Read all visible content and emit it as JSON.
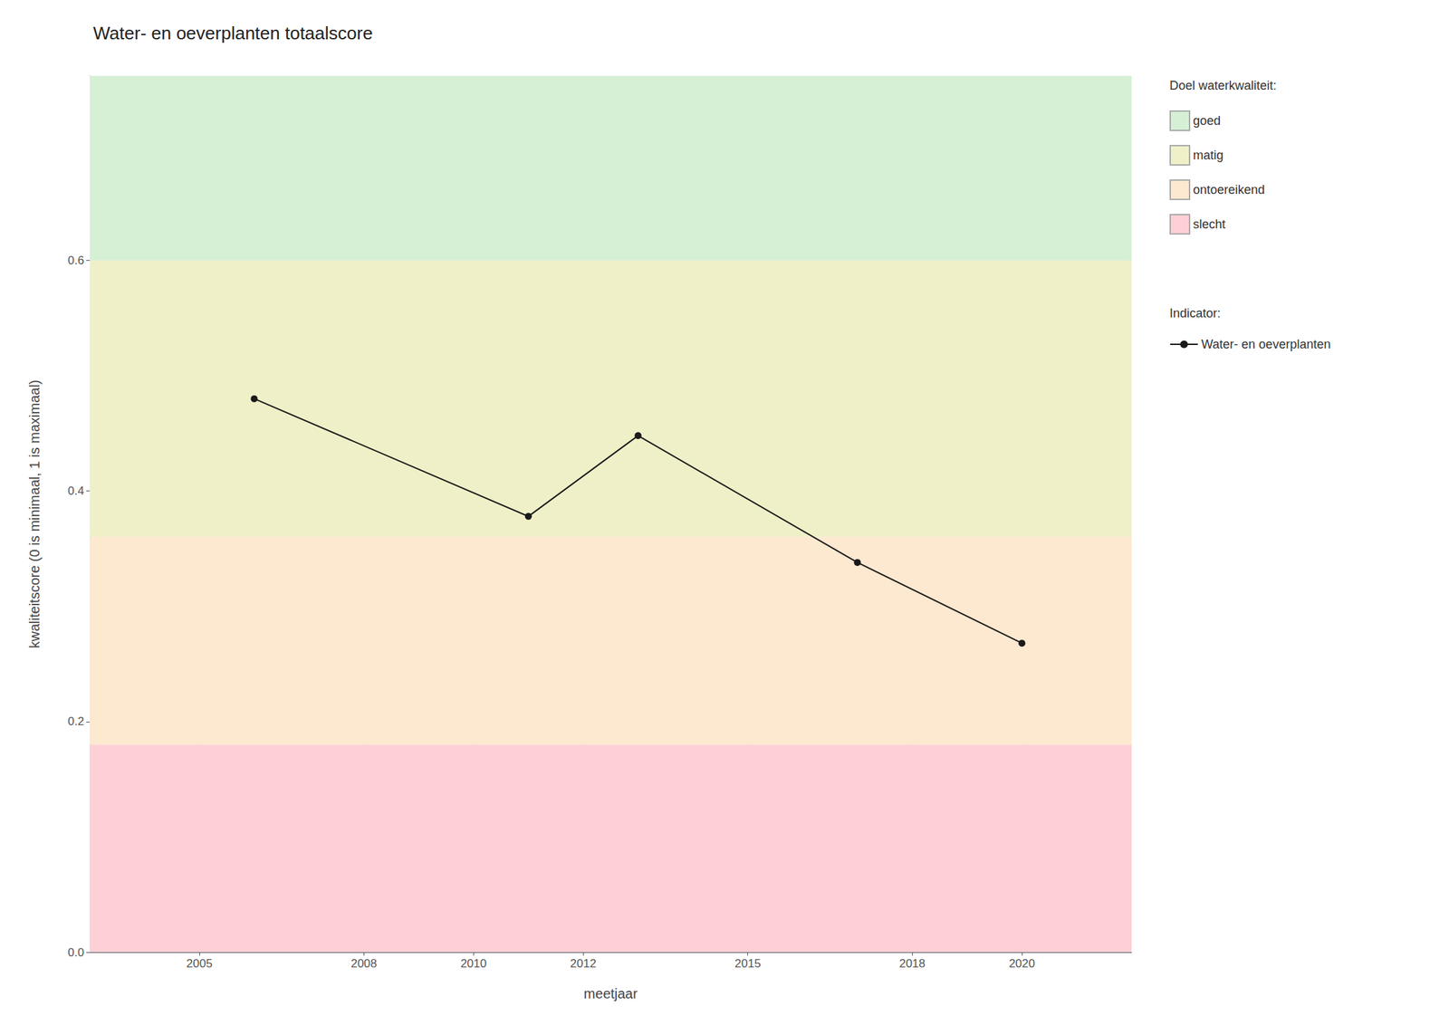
{
  "chart_data": {
    "type": "line",
    "title": "Water- en oeverplanten totaalscore",
    "xlabel": "meetjaar",
    "ylabel": "kwaliteitscore (0 is minimaal, 1 is maximaal)",
    "x": [
      2006,
      2011,
      2013,
      2017,
      2020
    ],
    "series": [
      {
        "name": "Water- en oeverplanten",
        "color": "#1a1a1a",
        "marker": "circle",
        "values": [
          0.48,
          0.378,
          0.448,
          0.338,
          0.268
        ]
      }
    ],
    "bands": [
      {
        "name": "goed",
        "ymin": 0.6,
        "ymax": 0.76,
        "color": "#d6f0d6"
      },
      {
        "name": "matig",
        "ymin": 0.36,
        "ymax": 0.6,
        "color": "#f0f0c8"
      },
      {
        "name": "ontoereikend",
        "ymin": 0.18,
        "ymax": 0.36,
        "color": "#fde8d0"
      },
      {
        "name": "slecht",
        "ymin": 0.0,
        "ymax": 0.18,
        "color": "#fdd0d5"
      }
    ],
    "legend_title_bands": "Doel waterkwaliteit:",
    "legend_title_series": "Indicator:",
    "xlim": [
      2003,
      2022
    ],
    "ylim": [
      0.0,
      0.76
    ],
    "xticks": [
      2005,
      2008,
      2010,
      2012,
      2015,
      2018,
      2020
    ],
    "yticks": [
      {
        "value": 0.0,
        "label": "0.0"
      },
      0.2,
      0.4,
      0.6
    ],
    "grid": true,
    "legend": "right"
  }
}
